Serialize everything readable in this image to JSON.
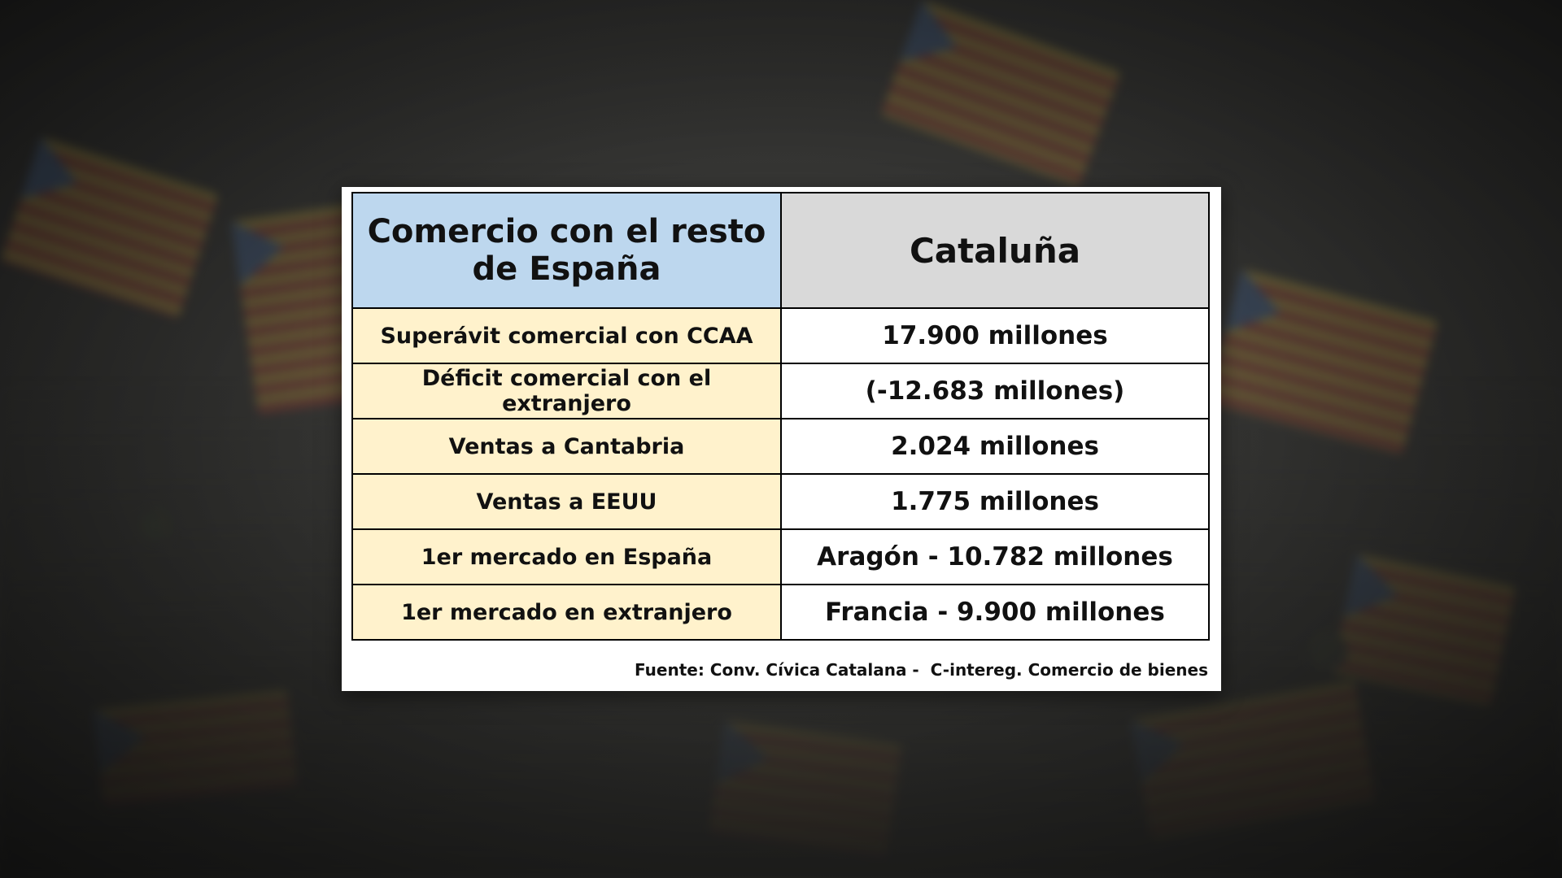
{
  "table": {
    "header": {
      "left": "Comercio con el resto de España",
      "right": "Cataluña"
    },
    "rows": [
      {
        "label": "Superávit comercial con CCAA",
        "value": "17.900 millones"
      },
      {
        "label": "Déficit comercial con el extranjero",
        "value": "(-12.683 millones)"
      },
      {
        "label": "Ventas a Cantabria",
        "value": "2.024 millones"
      },
      {
        "label": "Ventas a EEUU",
        "value": "1.775 millones"
      },
      {
        "label": "1er mercado en España",
        "value": "Aragón - 10.782 millones"
      },
      {
        "label": "1er mercado en extranjero",
        "value": "Francia - 9.900 millones"
      }
    ],
    "source": "Fuente: Conv. Cívica Catalana -  C-intereg. Comercio de bienes"
  },
  "colors": {
    "header_left_bg": "#bdd7ee",
    "header_right_bg": "#d9d9d9",
    "label_bg": "#fff2cc",
    "value_bg": "#ffffff"
  }
}
